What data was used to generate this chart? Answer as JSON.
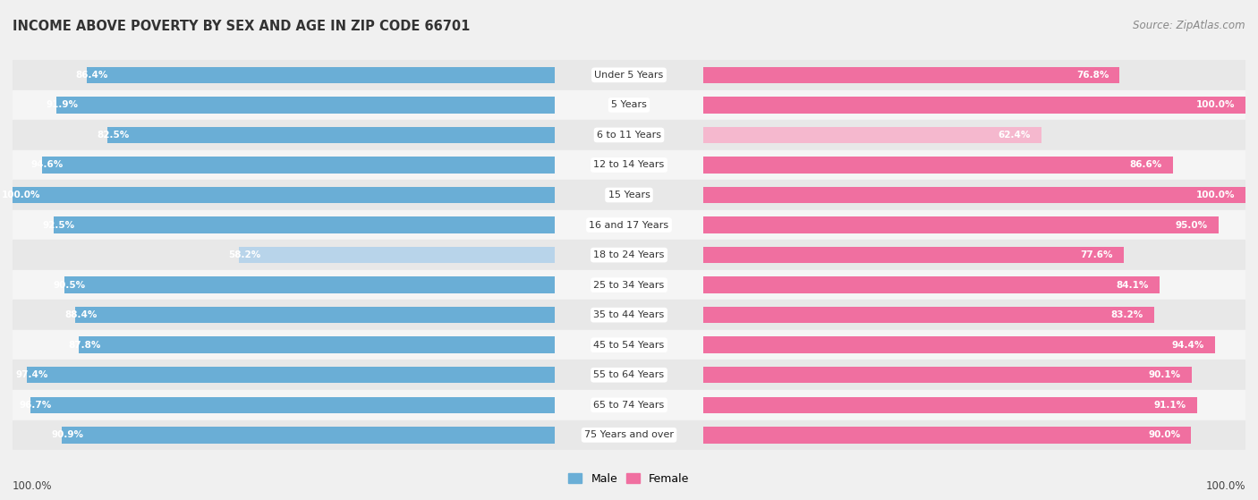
{
  "title": "INCOME ABOVE POVERTY BY SEX AND AGE IN ZIP CODE 66701",
  "source": "Source: ZipAtlas.com",
  "categories": [
    "Under 5 Years",
    "5 Years",
    "6 to 11 Years",
    "12 to 14 Years",
    "15 Years",
    "16 and 17 Years",
    "18 to 24 Years",
    "25 to 34 Years",
    "35 to 44 Years",
    "45 to 54 Years",
    "55 to 64 Years",
    "65 to 74 Years",
    "75 Years and over"
  ],
  "male_values": [
    86.4,
    91.9,
    82.5,
    94.6,
    100.0,
    92.5,
    58.2,
    90.5,
    88.4,
    87.8,
    97.4,
    96.7,
    90.9
  ],
  "female_values": [
    76.8,
    100.0,
    62.4,
    86.6,
    100.0,
    95.0,
    77.6,
    84.1,
    83.2,
    94.4,
    90.1,
    91.1,
    90.0
  ],
  "male_color_strong": "#6aaed6",
  "male_color_light": "#b8d4ea",
  "female_color_strong": "#f06fa0",
  "female_color_light": "#f5b8ce",
  "male_label": "Male",
  "female_label": "Female",
  "bar_height": 0.55,
  "background_color": "#f0f0f0",
  "row_bg_even": "#e8e8e8",
  "row_bg_odd": "#f5f5f5",
  "title_fontsize": 10.5,
  "source_fontsize": 8.5,
  "category_fontsize": 8.0,
  "value_fontsize": 7.5,
  "xlabel_bottom_left": "100.0%",
  "xlabel_bottom_right": "100.0%",
  "threshold_strong": 75.0
}
